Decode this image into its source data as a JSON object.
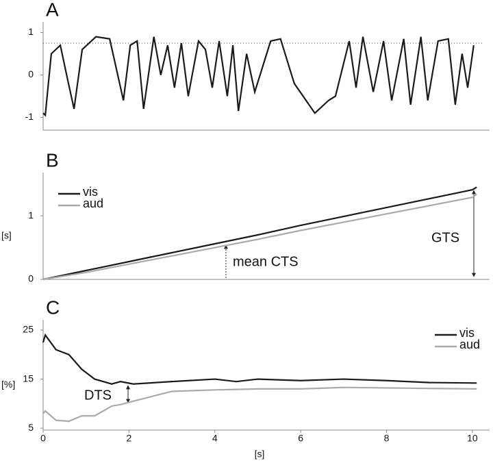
{
  "chart_data": [
    {
      "type": "line",
      "label": "A",
      "x": [
        0,
        0.05,
        0.19,
        0.4,
        0.59,
        0.72,
        0.91,
        1.23,
        1.55,
        1.87,
        2.03,
        2.19,
        2.34,
        2.58,
        2.74,
        2.9,
        3.06,
        3.22,
        3.38,
        3.62,
        3.78,
        3.94,
        4.1,
        4.29,
        4.42,
        4.55,
        4.74,
        4.93,
        5.3,
        5.53,
        5.85,
        6.33,
        6.65,
        6.81,
        7.13,
        7.29,
        7.45,
        7.69,
        7.93,
        8.12,
        8.4,
        8.56,
        8.8,
        8.96,
        9.2,
        9.44,
        9.6,
        9.76,
        9.89,
        10.03
      ],
      "series": [
        {
          "color": "#1a1a1a",
          "values": [
            -0.9,
            -0.95,
            0.5,
            0.7,
            -0.2,
            -0.8,
            0.6,
            0.9,
            0.85,
            -0.6,
            0.7,
            0.8,
            -0.8,
            0.9,
            0,
            0.7,
            -0.3,
            0.75,
            -0.5,
            0.8,
            0.6,
            -0.3,
            0.8,
            -0.5,
            0.7,
            -0.85,
            0.5,
            -0.4,
            0.8,
            0.85,
            -0.2,
            -0.9,
            -0.6,
            -0.5,
            0.8,
            -0.3,
            0.9,
            -0.4,
            0.8,
            -0.6,
            0.85,
            -0.7,
            0.9,
            -0.6,
            0.8,
            0.85,
            -0.7,
            0.5,
            -0.3,
            0.7
          ]
        }
      ],
      "threshold": 0.75,
      "xlim": [
        0,
        10.4
      ],
      "ylim": [
        -1.3,
        1.25
      ],
      "yticks": [
        -1,
        0,
        1
      ]
    },
    {
      "type": "line",
      "label": "B",
      "ylabel": "[s]",
      "x": [
        0,
        1,
        2,
        3,
        4,
        5,
        6,
        7,
        8,
        9,
        10,
        10.1
      ],
      "series": [
        {
          "name": "vis",
          "color": "#1a1a1a",
          "values": [
            0,
            0.14,
            0.28,
            0.42,
            0.56,
            0.7,
            0.85,
            0.99,
            1.13,
            1.27,
            1.41,
            1.45
          ]
        },
        {
          "name": "aud",
          "color": "#aaaaaa",
          "values": [
            0,
            0.11,
            0.24,
            0.37,
            0.5,
            0.63,
            0.77,
            0.9,
            1.03,
            1.16,
            1.29,
            1.34
          ]
        }
      ],
      "legend": "upper left",
      "annotations": [
        "mean CTS",
        "GTS"
      ],
      "xlim": [
        0,
        10.4
      ],
      "ylim": [
        0,
        1.68
      ],
      "yticks": [
        0,
        1
      ]
    },
    {
      "type": "line",
      "label": "C",
      "ylabel": "[%]",
      "xlabel": "[s]",
      "x": [
        0,
        0.05,
        0.3,
        0.6,
        0.9,
        1.2,
        1.6,
        1.8,
        2.1,
        3,
        4,
        4.5,
        5,
        6,
        7,
        8,
        9,
        10.1
      ],
      "series": [
        {
          "name": "vis",
          "color": "#1a1a1a",
          "values": [
            22.5,
            24,
            21,
            20,
            17,
            15,
            14,
            14.5,
            14,
            14.5,
            15,
            14.5,
            15,
            14.7,
            15,
            14.7,
            14.3,
            14.2
          ]
        },
        {
          "name": "aud",
          "color": "#aaaaaa",
          "values": [
            8,
            8.5,
            6.6,
            6.4,
            7.5,
            7.5,
            9.5,
            9.8,
            10.5,
            12.5,
            12.8,
            12.9,
            13,
            13,
            13.3,
            13.2,
            13.1,
            13
          ]
        }
      ],
      "legend": "upper right",
      "annotations": [
        "DTS"
      ],
      "xlim": [
        0,
        10.4
      ],
      "ylim": [
        4.6,
        27.1
      ],
      "yticks": [
        5,
        15,
        25
      ],
      "xticks": [
        0,
        2,
        4,
        6,
        8,
        10
      ]
    }
  ]
}
